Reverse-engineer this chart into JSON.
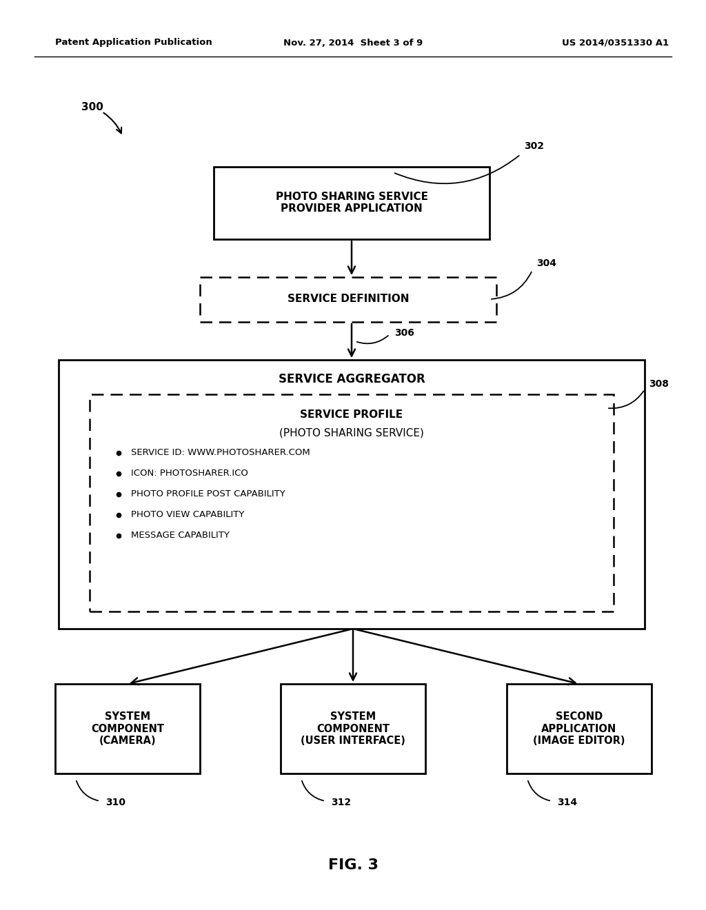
{
  "bg_color": "#ffffff",
  "header_left": "Patent Application Publication",
  "header_mid": "Nov. 27, 2014  Sheet 3 of 9",
  "header_right": "US 2014/0351330 A1",
  "fig_label": "FIG. 3",
  "diagram_label": "300",
  "box302_label": "302",
  "box302_text": "PHOTO SHARING SERVICE\nPROVIDER APPLICATION",
  "box304_label": "304",
  "box304_text": "SERVICE DEFINITION",
  "box306_label": "306",
  "box306_text": "SERVICE AGGREGATOR",
  "box308_label": "308",
  "box308_title_line1": "SERVICE PROFILE",
  "box308_title_line2": "(PHOTO SHARING SERVICE)",
  "box308_bullets": [
    "SERVICE ID: WWW.PHOTOSHARER.COM",
    "ICON: PHOTOSHARER.ICO",
    "PHOTO PROFILE POST CAPABILITY",
    "PHOTO VIEW CAPABILITY",
    "MESSAGE CAPABILITY"
  ],
  "box310_label": "310",
  "box310_text": "SYSTEM\nCOMPONENT\n(CAMERA)",
  "box312_label": "312",
  "box312_text": "SYSTEM\nCOMPONENT\n(USER INTERFACE)",
  "box314_label": "314",
  "box314_text": "SECOND\nAPPLICATION\n(IMAGE EDITOR)"
}
